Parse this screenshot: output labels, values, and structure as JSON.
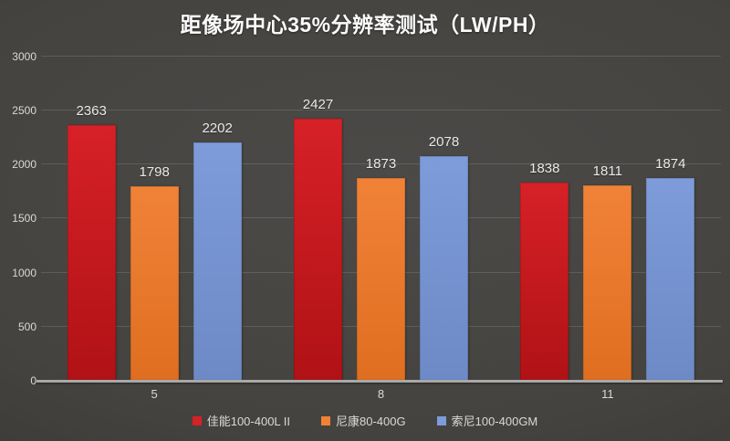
{
  "title": "距像场中心35%分辨率测试（LW/PH）",
  "chart_data": {
    "type": "bar",
    "title": "距像场中心35%分辨率测试（LW/PH）",
    "categories": [
      "5",
      "8",
      "11"
    ],
    "series": [
      {
        "name": "佳能100-400L II",
        "values": [
          2363,
          2427,
          1838
        ],
        "color_top": "#d62127",
        "color_bottom": "#b01215"
      },
      {
        "name": "尼康80-400G",
        "values": [
          1798,
          1873,
          1811
        ],
        "color_top": "#f08238",
        "color_bottom": "#e06e20"
      },
      {
        "name": "索尼100-400GM",
        "values": [
          2202,
          2078,
          1874
        ],
        "color_top": "#7e9bda",
        "color_bottom": "#6d8ac6"
      }
    ],
    "xlabel": "",
    "ylabel": "",
    "ylim": [
      0,
      3000
    ],
    "yticks": [
      0,
      500,
      1000,
      1500,
      2000,
      2500,
      3000
    ],
    "grid": true,
    "legend_position": "bottom",
    "background": "#454341",
    "text_color": "#d9d9d9",
    "axis_line_color": "#a8a8a8"
  }
}
